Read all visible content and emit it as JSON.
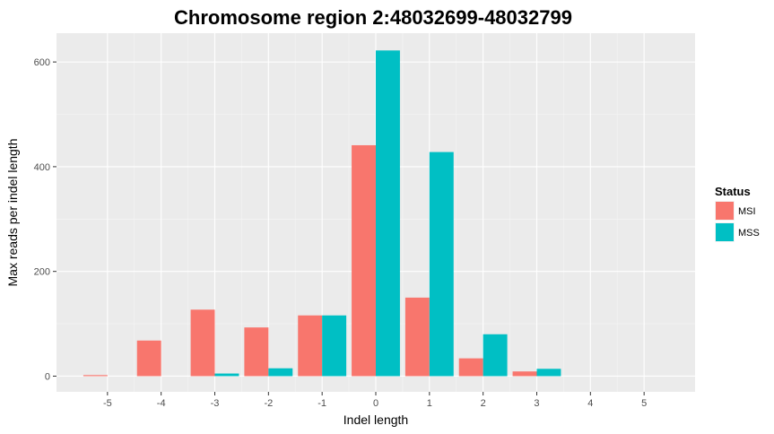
{
  "chart_data": {
    "type": "bar",
    "title": "Chromosome region 2:48032699-48032799",
    "xlabel": "Indel length",
    "ylabel": "Max reads per indel length",
    "categories": [
      "-5",
      "-4",
      "-3",
      "-2",
      "-1",
      "0",
      "1",
      "2",
      "3",
      "4",
      "5"
    ],
    "x": [
      -5,
      -4,
      -3,
      -2,
      -1,
      0,
      1,
      2,
      3,
      4,
      5
    ],
    "series": [
      {
        "name": "MSI",
        "color": "#F8766D",
        "values": [
          2,
          68,
          127,
          93,
          116,
          441,
          150,
          34,
          9,
          0,
          0
        ]
      },
      {
        "name": "MSS",
        "color": "#00BFC4",
        "values": [
          0,
          0,
          5,
          15,
          116,
          622,
          428,
          80,
          14,
          0,
          0
        ]
      }
    ],
    "ylim": [
      -30,
      655
    ],
    "xlim": [
      -5.95,
      5.95
    ],
    "yticks": [
      0,
      200,
      400,
      600
    ],
    "ytick_labels": [
      "0",
      "200",
      "400",
      "600"
    ],
    "grid": true,
    "legend": {
      "title": "Status",
      "position": "right",
      "entries": [
        "MSI",
        "MSS"
      ]
    }
  }
}
